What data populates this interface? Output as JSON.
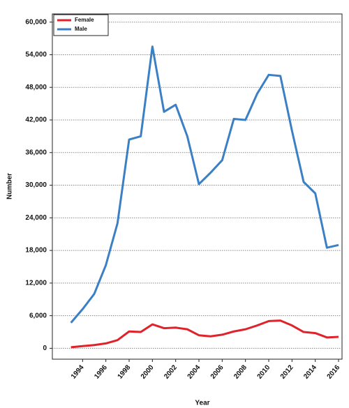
{
  "chart_data": {
    "type": "line",
    "x": [
      1993,
      1994,
      1995,
      1996,
      1997,
      1998,
      1999,
      2000,
      2001,
      2002,
      2003,
      2004,
      2005,
      2006,
      2007,
      2008,
      2009,
      2010,
      2011,
      2012,
      2013,
      2014,
      2015,
      2016
    ],
    "series": [
      {
        "name": "Female",
        "color": "#e0222b",
        "values": [
          200,
          400,
          600,
          900,
          1500,
          3100,
          3000,
          4400,
          3700,
          3800,
          3500,
          2400,
          2200,
          2500,
          3100,
          3500,
          4200,
          5000,
          5100,
          4200,
          3000,
          2800,
          2000,
          2100
        ]
      },
      {
        "name": "Male",
        "color": "#3b7fc4",
        "values": [
          4700,
          7200,
          10000,
          15300,
          23000,
          38400,
          39000,
          55500,
          43500,
          44800,
          39000,
          30200,
          32300,
          34600,
          42200,
          42000,
          46800,
          50300,
          50100,
          40000,
          30600,
          28500,
          18500,
          19000
        ]
      }
    ],
    "xlabel": "Year",
    "ylabel": "Number",
    "xlim": [
      1991.4,
      2016.3
    ],
    "xticks": [
      1994,
      1996,
      1998,
      2000,
      2002,
      2004,
      2006,
      2008,
      2010,
      2012,
      2014,
      2016
    ],
    "ylim": [
      -2000,
      61500
    ],
    "yticks": [
      0,
      {
        "value": 6000,
        "label": "6,000"
      },
      {
        "value": 12000,
        "label": "12,000"
      },
      {
        "value": 18000,
        "label": "18,000"
      },
      {
        "value": 24000,
        "label": "24,000"
      },
      {
        "value": 30000,
        "label": "30,000"
      },
      {
        "value": 36000,
        "label": "36,000"
      },
      {
        "value": 42000,
        "label": "42,000"
      },
      {
        "value": 48000,
        "label": "48,000"
      },
      {
        "value": 54000,
        "label": "54,000"
      },
      {
        "value": 60000,
        "label": "60,000"
      }
    ],
    "grid": true,
    "legend": "upper left"
  }
}
